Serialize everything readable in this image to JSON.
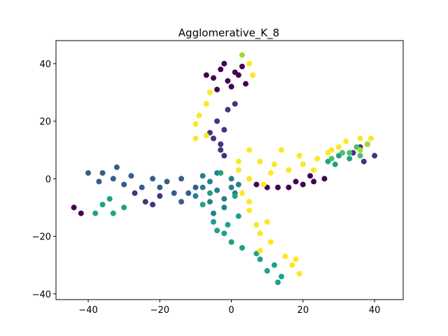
{
  "chart_data": {
    "type": "scatter",
    "title": "Agglomerative_K_8",
    "xlabel": "",
    "ylabel": "",
    "xlim": [
      -49,
      48
    ],
    "ylim": [
      -42,
      48
    ],
    "x_ticks": [
      -40,
      -20,
      0,
      20,
      40
    ],
    "y_ticks": [
      -40,
      -20,
      0,
      20,
      40
    ],
    "x_tick_labels": [
      "−40",
      "−20",
      "0",
      "20",
      "40"
    ],
    "y_tick_labels": [
      "−40",
      "−20",
      "0",
      "20",
      "40"
    ],
    "grid": false,
    "colormap": "viridis",
    "cluster_colors": [
      "#440154",
      "#46327e",
      "#365c8d",
      "#277f8e",
      "#1fa187",
      "#4ac16d",
      "#a0da39",
      "#fde725"
    ],
    "clusters": [
      {
        "label": 0,
        "points": [
          [
            -3,
            38
          ],
          [
            -5,
            35
          ],
          [
            -1,
            34
          ],
          [
            2,
            36
          ],
          [
            4,
            33
          ],
          [
            -2,
            40
          ],
          [
            -7,
            36
          ],
          [
            0,
            32
          ],
          [
            3,
            39
          ],
          [
            -4,
            31
          ],
          [
            1,
            37
          ],
          [
            26,
            0
          ],
          [
            23,
            -1
          ],
          [
            20,
            -2
          ],
          [
            16,
            -3
          ],
          [
            13,
            -3
          ],
          [
            10,
            -3
          ],
          [
            7,
            -2
          ],
          [
            22,
            1
          ],
          [
            18,
            -1
          ],
          [
            -44,
            -10
          ],
          [
            -42,
            -12
          ]
        ]
      },
      {
        "label": 1,
        "points": [
          [
            -3,
            10
          ],
          [
            -5,
            14
          ],
          [
            -2,
            17
          ],
          [
            -4,
            20
          ],
          [
            -1,
            24
          ],
          [
            1,
            26
          ],
          [
            -3,
            12
          ],
          [
            -6,
            16
          ],
          [
            -2,
            8
          ],
          [
            -20,
            -6
          ],
          [
            -24,
            -8
          ],
          [
            -27,
            -5
          ],
          [
            -22,
            -9
          ],
          [
            40,
            8
          ],
          [
            37,
            6
          ],
          [
            34,
            9
          ],
          [
            36,
            11
          ]
        ]
      },
      {
        "label": 2,
        "points": [
          [
            -40,
            2
          ],
          [
            -36,
            2
          ],
          [
            -32,
            4
          ],
          [
            -28,
            1
          ],
          [
            -37,
            -1
          ],
          [
            -33,
            0
          ],
          [
            -25,
            -3
          ],
          [
            -20,
            -3
          ],
          [
            -16,
            -5
          ],
          [
            -12,
            -5
          ],
          [
            -18,
            -1
          ],
          [
            -14,
            0
          ],
          [
            -10,
            -3
          ],
          [
            -22,
            0
          ],
          [
            -30,
            -2
          ],
          [
            -14,
            -8
          ]
        ]
      },
      {
        "label": 3,
        "points": [
          [
            -8,
            -3
          ],
          [
            -4,
            -4
          ],
          [
            0,
            -3
          ],
          [
            -6,
            -8
          ],
          [
            -2,
            -7
          ],
          [
            -8,
            1
          ],
          [
            -4,
            2
          ],
          [
            0,
            0
          ],
          [
            -2,
            -10
          ],
          [
            -5,
            -12
          ],
          [
            1,
            -5
          ],
          [
            -10,
            -6
          ],
          [
            -6,
            -1
          ],
          [
            2,
            -2
          ]
        ]
      },
      {
        "label": 4,
        "points": [
          [
            -36,
            -9
          ],
          [
            -33,
            -12
          ],
          [
            -30,
            -10
          ],
          [
            -38,
            -12
          ],
          [
            -34,
            -7
          ],
          [
            -5,
            -15
          ],
          [
            -2,
            -19
          ],
          [
            0,
            -22
          ],
          [
            3,
            -24
          ],
          [
            -4,
            -18
          ],
          [
            2,
            -13
          ],
          [
            -1,
            -16
          ],
          [
            8,
            -28
          ],
          [
            12,
            -30
          ],
          [
            14,
            -34
          ],
          [
            10,
            -32
          ],
          [
            13,
            -36
          ],
          [
            7,
            -26
          ],
          [
            -6,
            -5
          ],
          [
            -8,
            -9
          ],
          [
            27,
            6
          ],
          [
            30,
            8
          ],
          [
            33,
            7
          ],
          [
            29,
            5
          ],
          [
            1,
            -6
          ],
          [
            -3,
            2
          ]
        ]
      },
      {
        "label": 5,
        "points": [
          [
            33,
            9
          ],
          [
            36,
            8
          ],
          [
            35,
            11
          ],
          [
            31,
            9
          ],
          [
            28,
            7
          ],
          [
            38,
            12
          ]
        ]
      },
      {
        "label": 6,
        "points": [
          [
            3,
            43
          ],
          [
            36,
            10
          ],
          [
            38,
            12
          ]
        ]
      },
      {
        "label": 7,
        "points": [
          [
            -9,
            22
          ],
          [
            -7,
            26
          ],
          [
            -10,
            19
          ],
          [
            -6,
            30
          ],
          [
            -10,
            14
          ],
          [
            -7,
            15
          ],
          [
            5,
            40
          ],
          [
            6,
            36
          ],
          [
            5,
            10
          ],
          [
            2,
            3
          ],
          [
            8,
            6
          ],
          [
            12,
            5
          ],
          [
            16,
            3
          ],
          [
            20,
            5
          ],
          [
            24,
            7
          ],
          [
            28,
            10
          ],
          [
            32,
            13
          ],
          [
            36,
            14
          ],
          [
            39,
            14
          ],
          [
            14,
            10
          ],
          [
            19,
            8
          ],
          [
            9,
            -2
          ],
          [
            5,
            0
          ],
          [
            3,
            -5
          ],
          [
            5,
            -8
          ],
          [
            7,
            -16
          ],
          [
            10,
            -15
          ],
          [
            8,
            -19
          ],
          [
            11,
            -22
          ],
          [
            8,
            -25
          ],
          [
            17,
            -30
          ],
          [
            19,
            -33
          ],
          [
            15,
            -27
          ],
          [
            18,
            -28
          ],
          [
            5,
            -11
          ],
          [
            2,
            6
          ],
          [
            11,
            2
          ],
          [
            23,
            3
          ],
          [
            30,
            11
          ],
          [
            27,
            9
          ]
        ]
      }
    ]
  }
}
